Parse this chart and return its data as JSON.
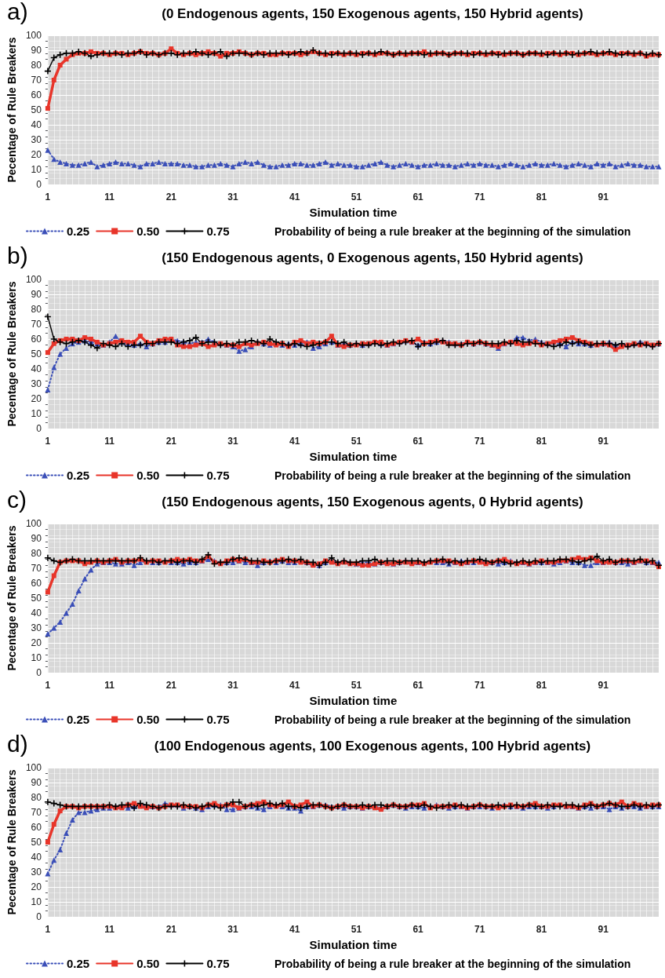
{
  "chart_data": [
    {
      "type": "line",
      "title": "(0 Endogenous agents, 150 Exogenous agents, 150 Hybrid agents)",
      "annotations": [
        "a)"
      ],
      "xlabel": "Simulation time",
      "ylabel": "Pecentage of Rule Breakers",
      "legend_title": "Probability of being a rule breaker at the beginning of the simulation",
      "legend": "bottom left",
      "grid": true,
      "ylim": [
        0,
        100
      ],
      "yticks": [
        0,
        10,
        20,
        30,
        40,
        50,
        60,
        70,
        80,
        90,
        100
      ],
      "categories": [
        "1",
        null,
        null,
        null,
        null,
        null,
        null,
        null,
        null,
        null,
        "11",
        null,
        null,
        null,
        null,
        null,
        null,
        null,
        null,
        null,
        "21",
        null,
        null,
        null,
        null,
        null,
        null,
        null,
        null,
        null,
        "31",
        null,
        null,
        null,
        null,
        null,
        null,
        null,
        null,
        null,
        "41",
        null,
        null,
        null,
        null,
        null,
        null,
        null,
        null,
        null,
        "51",
        null,
        null,
        null,
        null,
        null,
        null,
        null,
        null,
        null,
        "61",
        null,
        null,
        null,
        null,
        null,
        null,
        null,
        null,
        null,
        "71",
        null,
        null,
        null,
        null,
        null,
        null,
        null,
        null,
        null,
        "81",
        null,
        null,
        null,
        null,
        null,
        null,
        null,
        null,
        null,
        "91",
        null,
        null,
        null,
        null,
        null,
        null,
        null,
        null,
        null
      ],
      "series": [
        {
          "name": "0.25",
          "color": "#3b4fb8",
          "marker": "triangle",
          "line_style": "dotted",
          "values": [
            23,
            17,
            15,
            14,
            13,
            13,
            14,
            15,
            12,
            13,
            14,
            15,
            14,
            14,
            13,
            12,
            14,
            14,
            15,
            14,
            14,
            14,
            13,
            13,
            12,
            12,
            13,
            13,
            14,
            13,
            12,
            14,
            15,
            14,
            15,
            13,
            12,
            12,
            13,
            13,
            14,
            14,
            13,
            13,
            14,
            15,
            13,
            14,
            13,
            13,
            12,
            12,
            13,
            14,
            15,
            13,
            12,
            13,
            14,
            13,
            12,
            13,
            13,
            14,
            13,
            13,
            12,
            13,
            14,
            13,
            14,
            13,
            13,
            12,
            13,
            14,
            13,
            12,
            13,
            14,
            13,
            13,
            14,
            13,
            12,
            13,
            14,
            13,
            12,
            14,
            13,
            14,
            12,
            13,
            14,
            13,
            13,
            12,
            12,
            12
          ]
        },
        {
          "name": "0.50",
          "color": "#e8352a",
          "marker": "square",
          "line_style": "solid",
          "values": [
            51,
            70,
            80,
            84,
            87,
            88,
            88,
            89,
            88,
            88,
            87,
            88,
            88,
            87,
            88,
            89,
            88,
            88,
            87,
            88,
            91,
            88,
            87,
            88,
            87,
            88,
            89,
            88,
            86,
            88,
            88,
            89,
            88,
            87,
            88,
            88,
            87,
            87,
            88,
            88,
            88,
            87,
            88,
            89,
            88,
            87,
            88,
            88,
            87,
            88,
            87,
            88,
            88,
            87,
            88,
            88,
            87,
            88,
            87,
            88,
            88,
            89,
            87,
            88,
            88,
            87,
            88,
            88,
            87,
            88,
            88,
            87,
            88,
            88,
            87,
            88,
            88,
            87,
            88,
            88,
            87,
            88,
            88,
            87,
            88,
            88,
            87,
            88,
            88,
            87,
            88,
            88,
            87,
            88,
            88,
            87,
            88,
            86,
            87,
            87
          ]
        },
        {
          "name": "0.75",
          "color": "#000000",
          "marker": "cross",
          "line_style": "solid",
          "values": [
            76,
            85,
            87,
            88,
            88,
            89,
            88,
            86,
            87,
            88,
            88,
            88,
            87,
            88,
            88,
            89,
            87,
            88,
            87,
            88,
            88,
            87,
            88,
            88,
            89,
            88,
            87,
            88,
            89,
            86,
            88,
            88,
            88,
            87,
            88,
            87,
            88,
            88,
            88,
            87,
            88,
            89,
            88,
            90,
            88,
            88,
            87,
            88,
            88,
            88,
            88,
            87,
            88,
            88,
            89,
            88,
            87,
            88,
            88,
            88,
            88,
            87,
            88,
            88,
            88,
            87,
            88,
            88,
            88,
            87,
            88,
            88,
            88,
            87,
            88,
            88,
            88,
            87,
            88,
            88,
            88,
            87,
            88,
            88,
            88,
            87,
            88,
            88,
            89,
            88,
            88,
            89,
            88,
            87,
            88,
            88,
            88,
            87,
            88,
            87
          ]
        }
      ]
    },
    {
      "type": "line",
      "title": "(150 Endogenous agents, 0 Exogenous agents, 150 Hybrid agents)",
      "annotations": [
        "b)"
      ],
      "xlabel": "Simulation time",
      "ylabel": "Pecentage of Rule Breakers",
      "legend_title": "Probability of being a rule breaker at the beginning of the simulation",
      "legend": "bottom left",
      "grid": true,
      "ylim": [
        0,
        100
      ],
      "yticks": [
        0,
        10,
        20,
        30,
        40,
        50,
        60,
        70,
        80,
        90,
        100
      ],
      "categories": [
        "1",
        null,
        null,
        null,
        null,
        null,
        null,
        null,
        null,
        null,
        "11",
        null,
        null,
        null,
        null,
        null,
        null,
        null,
        null,
        null,
        "21",
        null,
        null,
        null,
        null,
        null,
        null,
        null,
        null,
        null,
        "31",
        null,
        null,
        null,
        null,
        null,
        null,
        null,
        null,
        null,
        "41",
        null,
        null,
        null,
        null,
        null,
        null,
        null,
        null,
        null,
        "51",
        null,
        null,
        null,
        null,
        null,
        null,
        null,
        null,
        null,
        "61",
        null,
        null,
        null,
        null,
        null,
        null,
        null,
        null,
        null,
        "71",
        null,
        null,
        null,
        null,
        null,
        null,
        null,
        null,
        null,
        "81",
        null,
        null,
        null,
        null,
        null,
        null,
        null,
        null,
        null,
        "91",
        null,
        null,
        null,
        null,
        null,
        null,
        null,
        null,
        null
      ],
      "series": [
        {
          "name": "0.25",
          "color": "#3b4fb8",
          "marker": "triangle",
          "line_style": "dotted",
          "values": [
            26,
            41,
            50,
            54,
            57,
            58,
            59,
            58,
            57,
            56,
            58,
            62,
            58,
            57,
            56,
            57,
            55,
            57,
            58,
            58,
            60,
            59,
            58,
            57,
            58,
            58,
            60,
            58,
            57,
            56,
            55,
            52,
            53,
            55,
            58,
            57,
            56,
            57,
            56,
            57,
            56,
            57,
            58,
            54,
            55,
            57,
            58,
            56,
            57,
            56,
            57,
            56,
            57,
            58,
            57,
            56,
            57,
            58,
            59,
            58,
            56,
            58,
            57,
            58,
            59,
            58,
            57,
            57,
            58,
            57,
            58,
            57,
            56,
            54,
            57,
            58,
            61,
            61,
            59,
            60,
            58,
            57,
            58,
            57,
            55,
            58,
            57,
            57,
            56,
            57,
            57,
            58,
            56,
            57,
            56,
            57,
            58,
            57,
            56,
            57
          ]
        },
        {
          "name": "0.50",
          "color": "#e8352a",
          "marker": "square",
          "line_style": "solid",
          "values": [
            51,
            57,
            59,
            60,
            60,
            59,
            61,
            60,
            58,
            56,
            57,
            58,
            59,
            58,
            58,
            62,
            58,
            57,
            59,
            60,
            60,
            56,
            55,
            55,
            56,
            57,
            55,
            56,
            57,
            56,
            56,
            55,
            57,
            56,
            57,
            58,
            57,
            56,
            57,
            55,
            58,
            59,
            57,
            58,
            57,
            58,
            62,
            56,
            55,
            56,
            56,
            57,
            57,
            58,
            58,
            56,
            57,
            58,
            59,
            58,
            60,
            57,
            58,
            59,
            58,
            57,
            57,
            56,
            58,
            57,
            58,
            57,
            56,
            55,
            57,
            58,
            57,
            56,
            57,
            58,
            56,
            57,
            58,
            59,
            60,
            61,
            59,
            58,
            57,
            56,
            57,
            56,
            53,
            55,
            56,
            57,
            56,
            57,
            56,
            57
          ]
        },
        {
          "name": "0.75",
          "color": "#000000",
          "marker": "cross",
          "line_style": "solid",
          "values": [
            75,
            60,
            58,
            57,
            58,
            59,
            58,
            56,
            54,
            57,
            56,
            55,
            57,
            55,
            56,
            56,
            57,
            57,
            58,
            58,
            58,
            57,
            58,
            59,
            61,
            57,
            58,
            58,
            56,
            57,
            56,
            58,
            58,
            59,
            58,
            57,
            60,
            58,
            57,
            56,
            57,
            56,
            55,
            56,
            57,
            58,
            58,
            57,
            58,
            56,
            57,
            56,
            56,
            57,
            56,
            57,
            58,
            57,
            58,
            59,
            55,
            57,
            57,
            58,
            59,
            56,
            56,
            56,
            57,
            57,
            58,
            57,
            57,
            57,
            58,
            57,
            59,
            58,
            58,
            57,
            57,
            56,
            55,
            56,
            58,
            57,
            58,
            57,
            56,
            57,
            57,
            57,
            56,
            57,
            55,
            56,
            57,
            56,
            55,
            57
          ]
        }
      ]
    },
    {
      "type": "line",
      "title": "(150 Endogenous agents, 150 Exogenous agents, 0 Hybrid agents)",
      "annotations": [
        "c)"
      ],
      "xlabel": "Simulation time",
      "ylabel": "Pecentage of Rule Breakers",
      "legend_title": "Probability of being a rule breaker at the beginning of the simulation",
      "legend": "bottom left",
      "grid": true,
      "ylim": [
        0,
        100
      ],
      "yticks": [
        0,
        10,
        20,
        30,
        40,
        50,
        60,
        70,
        80,
        90,
        100
      ],
      "categories": [
        "1",
        null,
        null,
        null,
        null,
        null,
        null,
        null,
        null,
        null,
        "11",
        null,
        null,
        null,
        null,
        null,
        null,
        null,
        null,
        null,
        "21",
        null,
        null,
        null,
        null,
        null,
        null,
        null,
        null,
        null,
        "31",
        null,
        null,
        null,
        null,
        null,
        null,
        null,
        null,
        null,
        "41",
        null,
        null,
        null,
        null,
        null,
        null,
        null,
        null,
        null,
        "51",
        null,
        null,
        null,
        null,
        null,
        null,
        null,
        null,
        null,
        "61",
        null,
        null,
        null,
        null,
        null,
        null,
        null,
        null,
        null,
        "71",
        null,
        null,
        null,
        null,
        null,
        null,
        null,
        null,
        null,
        "81",
        null,
        null,
        null,
        null,
        null,
        null,
        null,
        null,
        null,
        "91",
        null,
        null,
        null,
        null,
        null,
        null,
        null,
        null,
        null
      ],
      "series": [
        {
          "name": "0.25",
          "color": "#3b4fb8",
          "marker": "triangle",
          "line_style": "dotted",
          "values": [
            26,
            30,
            34,
            40,
            46,
            55,
            63,
            69,
            73,
            74,
            74,
            73,
            73,
            74,
            72,
            74,
            75,
            74,
            74,
            75,
            74,
            74,
            73,
            74,
            74,
            75,
            76,
            75,
            74,
            74,
            74,
            75,
            74,
            74,
            72,
            74,
            75,
            74,
            75,
            74,
            74,
            75,
            74,
            73,
            72,
            74,
            75,
            74,
            75,
            74,
            73,
            74,
            74,
            73,
            74,
            74,
            73,
            74,
            75,
            74,
            74,
            74,
            75,
            74,
            74,
            73,
            74,
            75,
            74,
            74,
            75,
            74,
            74,
            73,
            74,
            75,
            74,
            74,
            73,
            74,
            74,
            74,
            73,
            74,
            75,
            74,
            74,
            72,
            72,
            74,
            74,
            75,
            74,
            74,
            73,
            74,
            75,
            74,
            74,
            74
          ]
        },
        {
          "name": "0.50",
          "color": "#e8352a",
          "marker": "square",
          "line_style": "solid",
          "values": [
            54,
            65,
            74,
            75,
            75,
            75,
            73,
            74,
            75,
            74,
            75,
            76,
            74,
            75,
            75,
            76,
            74,
            75,
            75,
            74,
            75,
            76,
            75,
            76,
            75,
            75,
            78,
            74,
            73,
            75,
            76,
            75,
            76,
            74,
            74,
            75,
            74,
            75,
            76,
            75,
            75,
            74,
            74,
            72,
            73,
            75,
            74,
            73,
            74,
            73,
            73,
            72,
            72,
            73,
            74,
            73,
            73,
            74,
            74,
            73,
            74,
            73,
            74,
            75,
            75,
            75,
            74,
            73,
            74,
            75,
            74,
            73,
            74,
            75,
            76,
            74,
            73,
            74,
            73,
            74,
            75,
            74,
            74,
            75,
            75,
            76,
            77,
            76,
            77,
            75,
            74,
            74,
            74,
            75,
            75,
            74,
            75,
            75,
            74,
            71
          ]
        },
        {
          "name": "0.75",
          "color": "#000000",
          "marker": "cross",
          "line_style": "solid",
          "values": [
            77,
            75,
            74,
            75,
            76,
            75,
            75,
            75,
            75,
            75,
            75,
            75,
            75,
            75,
            75,
            77,
            75,
            75,
            74,
            75,
            75,
            74,
            75,
            75,
            74,
            76,
            79,
            73,
            74,
            74,
            76,
            77,
            76,
            75,
            75,
            74,
            74,
            75,
            75,
            76,
            75,
            76,
            74,
            74,
            72,
            74,
            77,
            74,
            75,
            74,
            74,
            75,
            75,
            76,
            74,
            75,
            75,
            74,
            75,
            75,
            75,
            74,
            75,
            75,
            76,
            74,
            75,
            74,
            75,
            75,
            76,
            75,
            74,
            75,
            74,
            73,
            74,
            75,
            74,
            75,
            74,
            75,
            75,
            76,
            76,
            75,
            74,
            75,
            76,
            78,
            75,
            76,
            74,
            75,
            75,
            75,
            76,
            74,
            75,
            72
          ]
        }
      ]
    },
    {
      "type": "line",
      "title": "(100 Endogenous agents, 100 Exogenous agents, 100 Hybrid agents)",
      "annotations": [
        "d)"
      ],
      "xlabel": "Simulation time",
      "ylabel": "Pecentage of Rule Breakers",
      "legend_title": "Probability of being a rule breaker at the beginning of the simulation",
      "legend": "bottom left",
      "grid": true,
      "ylim": [
        0,
        100
      ],
      "yticks": [
        0,
        10,
        20,
        30,
        40,
        50,
        60,
        70,
        80,
        90,
        100
      ],
      "categories": [
        "1",
        null,
        null,
        null,
        null,
        null,
        null,
        null,
        null,
        null,
        "11",
        null,
        null,
        null,
        null,
        null,
        null,
        null,
        null,
        null,
        "21",
        null,
        null,
        null,
        null,
        null,
        null,
        null,
        null,
        null,
        "31",
        null,
        null,
        null,
        null,
        null,
        null,
        null,
        null,
        null,
        "41",
        null,
        null,
        null,
        null,
        null,
        null,
        null,
        null,
        null,
        "51",
        null,
        null,
        null,
        null,
        null,
        null,
        null,
        null,
        null,
        "61",
        null,
        null,
        null,
        null,
        null,
        null,
        null,
        null,
        null,
        "71",
        null,
        null,
        null,
        null,
        null,
        null,
        null,
        null,
        null,
        "81",
        null,
        null,
        null,
        null,
        null,
        null,
        null,
        null,
        null,
        "91",
        null,
        null,
        null,
        null,
        null,
        null,
        null,
        null,
        null
      ],
      "series": [
        {
          "name": "0.25",
          "color": "#3b4fb8",
          "marker": "triangle",
          "line_style": "dotted",
          "values": [
            29,
            38,
            45,
            56,
            65,
            70,
            70,
            71,
            72,
            73,
            73,
            74,
            74,
            73,
            74,
            75,
            74,
            74,
            74,
            76,
            75,
            75,
            73,
            74,
            73,
            72,
            74,
            75,
            75,
            72,
            72,
            73,
            74,
            74,
            73,
            72,
            74,
            75,
            74,
            73,
            73,
            71,
            74,
            74,
            75,
            75,
            74,
            74,
            73,
            74,
            74,
            73,
            74,
            74,
            73,
            74,
            75,
            74,
            73,
            74,
            74,
            73,
            74,
            75,
            74,
            73,
            74,
            74,
            73,
            74,
            74,
            74,
            73,
            74,
            75,
            74,
            74,
            73,
            74,
            74,
            74,
            73,
            74,
            75,
            74,
            74,
            73,
            74,
            73,
            74,
            74,
            72,
            74,
            73,
            74,
            74,
            73,
            74,
            74,
            74
          ]
        },
        {
          "name": "0.50",
          "color": "#e8352a",
          "marker": "square",
          "line_style": "solid",
          "values": [
            50,
            62,
            71,
            74,
            74,
            73,
            74,
            74,
            74,
            74,
            74,
            73,
            73,
            75,
            76,
            74,
            73,
            74,
            73,
            74,
            75,
            75,
            74,
            74,
            74,
            73,
            75,
            76,
            74,
            75,
            75,
            73,
            74,
            75,
            76,
            77,
            75,
            74,
            75,
            77,
            74,
            75,
            77,
            74,
            75,
            74,
            73,
            74,
            75,
            74,
            74,
            73,
            74,
            73,
            72,
            74,
            75,
            74,
            74,
            75,
            75,
            76,
            73,
            74,
            74,
            74,
            75,
            74,
            73,
            74,
            75,
            74,
            74,
            73,
            74,
            75,
            74,
            74,
            75,
            76,
            74,
            74,
            75,
            75,
            74,
            74,
            73,
            75,
            76,
            74,
            75,
            76,
            75,
            77,
            74,
            76,
            75,
            74,
            75,
            75
          ]
        },
        {
          "name": "0.75",
          "color": "#000000",
          "marker": "cross",
          "line_style": "solid",
          "values": [
            77,
            76,
            75,
            74,
            74,
            74,
            74,
            74,
            74,
            74,
            75,
            74,
            75,
            75,
            73,
            76,
            75,
            74,
            73,
            74,
            74,
            74,
            75,
            74,
            73,
            74,
            75,
            74,
            73,
            75,
            77,
            77,
            74,
            75,
            74,
            75,
            76,
            75,
            76,
            74,
            74,
            73,
            74,
            75,
            75,
            74,
            73,
            74,
            75,
            74,
            74,
            75,
            74,
            75,
            75,
            74,
            75,
            74,
            74,
            75,
            74,
            75,
            74,
            73,
            74,
            75,
            74,
            75,
            74,
            74,
            75,
            74,
            74,
            75,
            74,
            74,
            75,
            74,
            75,
            74,
            74,
            75,
            74,
            74,
            75,
            75,
            74,
            74,
            75,
            74,
            75,
            76,
            75,
            74,
            74,
            75,
            74,
            75,
            74,
            75
          ]
        }
      ]
    }
  ]
}
